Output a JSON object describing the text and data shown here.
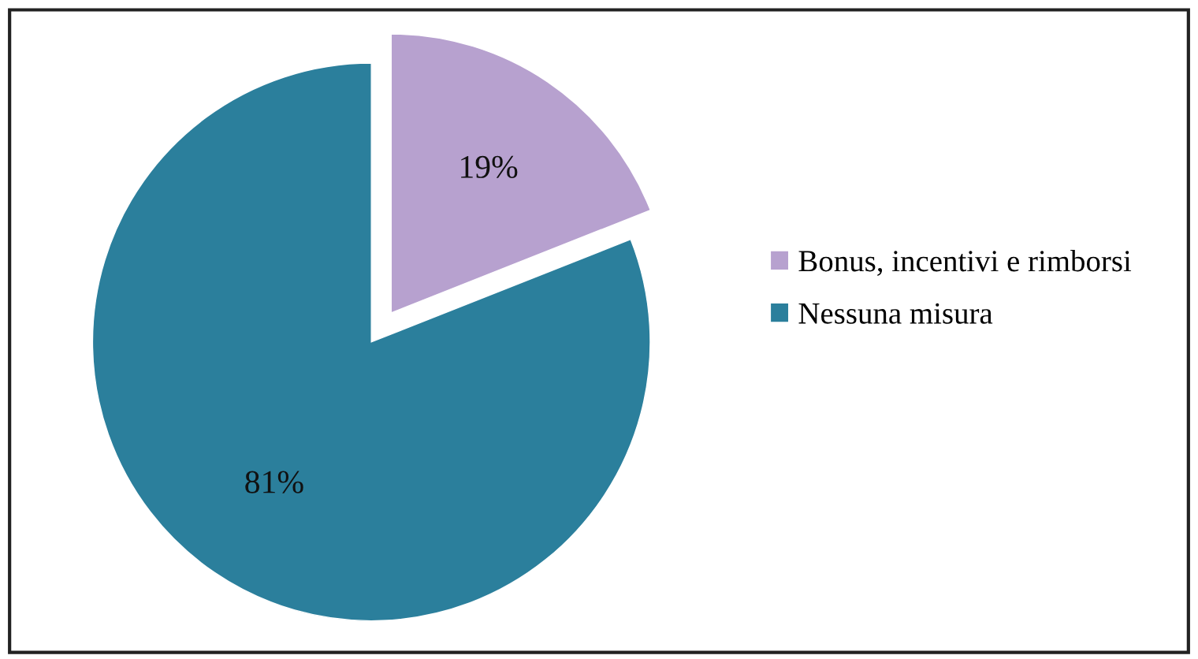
{
  "chart_data": {
    "type": "pie",
    "categories": [
      "Bonus, incentivi e rimborsi",
      "Nessuna misura"
    ],
    "values": [
      19,
      81
    ],
    "colors": [
      "#b7a1cf",
      "#2b7f9c"
    ],
    "value_labels": [
      "19%",
      "81%"
    ],
    "legend": "right"
  }
}
